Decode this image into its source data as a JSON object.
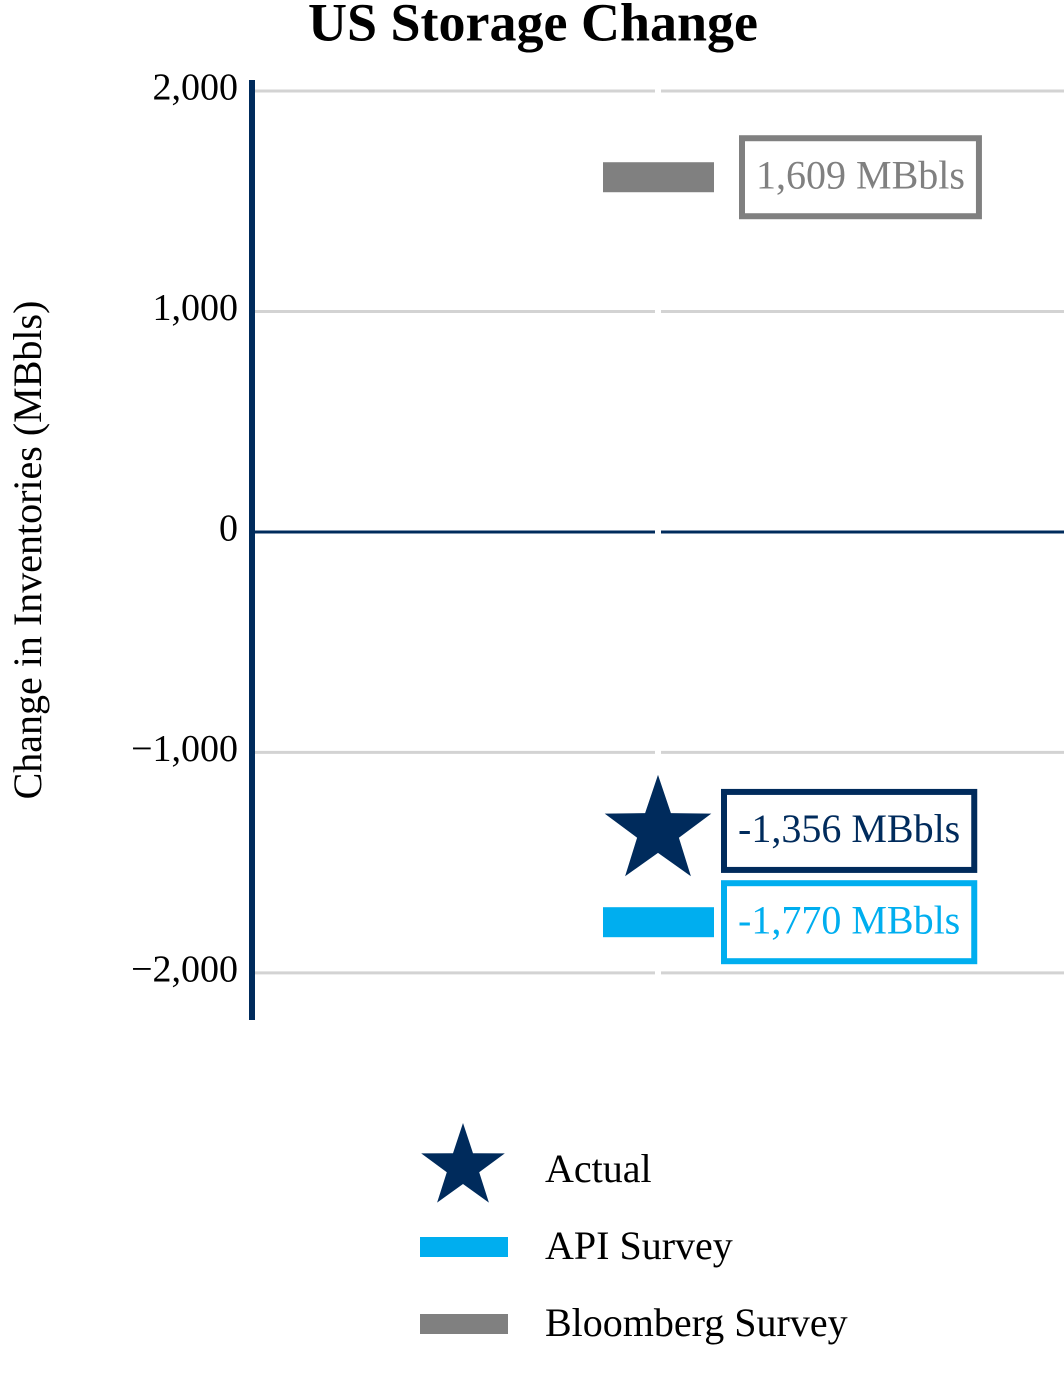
{
  "chart_data": {
    "type": "range-markers",
    "title": "US Storage Change",
    "y_label": "Change in Inventories (MBbls)",
    "categories": [
      null
    ],
    "ylim": [
      -2200,
      2050
    ],
    "yticks": [
      {
        "value": 2000,
        "label": "2,000"
      },
      {
        "value": 1000,
        "label": "1,000"
      },
      0,
      {
        "value": -1000,
        "label": "−1,000"
      },
      {
        "value": -2000,
        "label": "−2,000"
      }
    ],
    "grid": true,
    "legend": "bottom",
    "series": [
      {
        "name": "Actual",
        "color": "#002b5c",
        "marker": "star",
        "values": [
          -1356
        ],
        "value_labels": [
          "-1,356 MBbls"
        ]
      },
      {
        "name": "API Survey",
        "color": "#00aeef",
        "marker": "bar",
        "values": [
          -1770
        ],
        "value_labels": [
          "-1,770 MBbls"
        ]
      },
      {
        "name": "Bloomberg Survey",
        "color": "#808080",
        "marker": "bar",
        "values": [
          1609
        ],
        "value_labels": [
          "1,609 MBbls"
        ]
      }
    ]
  }
}
